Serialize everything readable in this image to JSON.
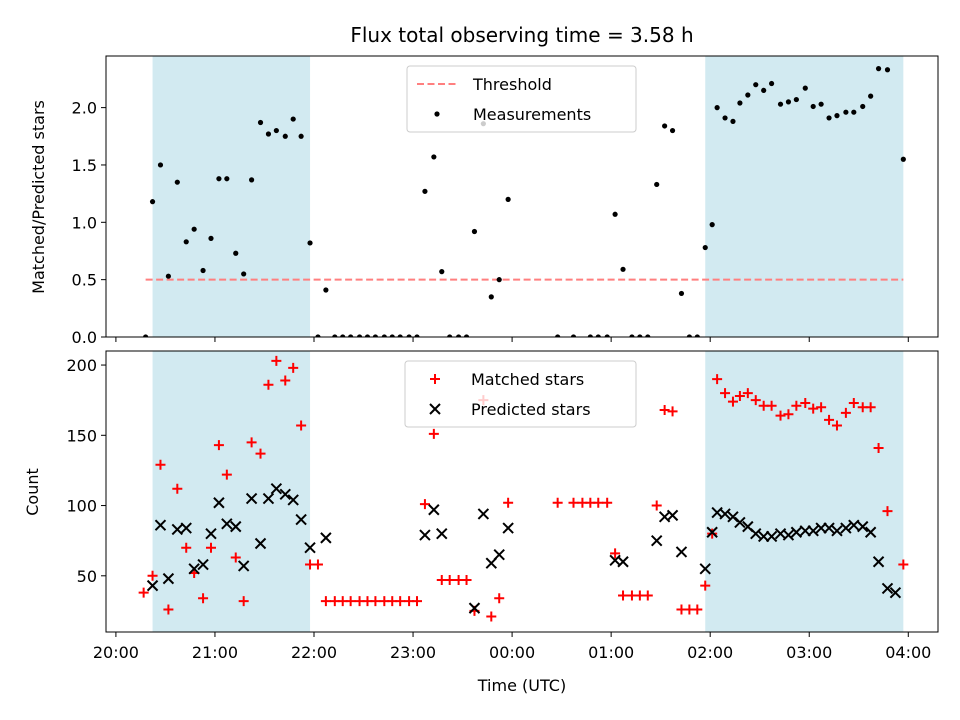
{
  "chart_data": {
    "title": "Flux total observing time = 3.58 h",
    "x_labels": [
      "20:00",
      "21:00",
      "22:00",
      "23:00",
      "00:00",
      "01:00",
      "02:00",
      "03:00",
      "04:00"
    ],
    "x_axis_unit": "hours since 20:00 UTC",
    "xlabel": "Time (UTC)",
    "xlim": [
      -0.1,
      8.3
    ],
    "shaded_intervals": [
      [
        0.37,
        1.96
      ],
      [
        5.95,
        7.95
      ]
    ],
    "shade_color": "#add8e6",
    "panels": [
      {
        "type": "scatter",
        "ylabel": "Matched/Predicted stars",
        "ylim": [
          0,
          2.45
        ],
        "yticks": [
          "0.0",
          "0.5",
          "1.0",
          "1.5",
          "2.0"
        ],
        "legend_position": "upper center",
        "threshold": {
          "name": "Threshold",
          "value": 0.5,
          "x": [
            0.3,
            7.95
          ],
          "color": "#ff7f7f"
        },
        "series": [
          {
            "name": "Measurements",
            "marker": "dot",
            "color": "#000000",
            "points": [
              [
                0.3,
                0.0
              ],
              [
                0.37,
                1.18
              ],
              [
                0.45,
                1.5
              ],
              [
                0.53,
                0.53
              ],
              [
                0.62,
                1.35
              ],
              [
                0.71,
                0.83
              ],
              [
                0.79,
                0.94
              ],
              [
                0.88,
                0.58
              ],
              [
                0.96,
                0.86
              ],
              [
                1.04,
                1.38
              ],
              [
                1.12,
                1.38
              ],
              [
                1.21,
                0.73
              ],
              [
                1.29,
                0.55
              ],
              [
                1.37,
                1.37
              ],
              [
                1.46,
                1.87
              ],
              [
                1.54,
                1.77
              ],
              [
                1.62,
                1.8
              ],
              [
                1.71,
                1.75
              ],
              [
                1.79,
                1.9
              ],
              [
                1.87,
                1.75
              ],
              [
                1.96,
                0.82
              ],
              [
                2.04,
                0.0
              ],
              [
                2.12,
                0.41
              ],
              [
                2.21,
                0.0
              ],
              [
                2.29,
                0.0
              ],
              [
                2.37,
                0.0
              ],
              [
                2.46,
                0.0
              ],
              [
                2.54,
                0.0
              ],
              [
                2.62,
                0.0
              ],
              [
                2.71,
                0.0
              ],
              [
                2.79,
                0.0
              ],
              [
                2.87,
                0.0
              ],
              [
                2.96,
                0.0
              ],
              [
                3.04,
                0.0
              ],
              [
                3.12,
                1.27
              ],
              [
                3.21,
                1.57
              ],
              [
                3.29,
                0.57
              ],
              [
                3.37,
                0.0
              ],
              [
                3.46,
                0.0
              ],
              [
                3.54,
                0.0
              ],
              [
                3.62,
                0.92
              ],
              [
                3.71,
                1.86
              ],
              [
                3.79,
                0.35
              ],
              [
                3.87,
                0.5
              ],
              [
                3.96,
                1.2
              ],
              [
                4.46,
                0.0
              ],
              [
                4.62,
                0.0
              ],
              [
                4.79,
                0.0
              ],
              [
                4.87,
                0.0
              ],
              [
                4.96,
                0.0
              ],
              [
                5.04,
                1.07
              ],
              [
                5.12,
                0.59
              ],
              [
                5.21,
                0.0
              ],
              [
                5.29,
                0.0
              ],
              [
                5.37,
                0.0
              ],
              [
                5.46,
                1.33
              ],
              [
                5.54,
                1.84
              ],
              [
                5.62,
                1.8
              ],
              [
                5.71,
                0.38
              ],
              [
                5.79,
                0.0
              ],
              [
                5.87,
                0.0
              ],
              [
                5.95,
                0.78
              ],
              [
                6.02,
                0.98
              ],
              [
                6.07,
                2.0
              ],
              [
                6.15,
                1.91
              ],
              [
                6.23,
                1.88
              ],
              [
                6.3,
                2.04
              ],
              [
                6.38,
                2.11
              ],
              [
                6.46,
                2.2
              ],
              [
                6.54,
                2.15
              ],
              [
                6.62,
                2.21
              ],
              [
                6.71,
                2.03
              ],
              [
                6.79,
                2.05
              ],
              [
                6.87,
                2.07
              ],
              [
                6.96,
                2.17
              ],
              [
                7.04,
                2.01
              ],
              [
                7.12,
                2.03
              ],
              [
                7.2,
                1.91
              ],
              [
                7.28,
                1.93
              ],
              [
                7.37,
                1.96
              ],
              [
                7.45,
                1.96
              ],
              [
                7.54,
                2.01
              ],
              [
                7.62,
                2.1
              ],
              [
                7.7,
                2.34
              ],
              [
                7.79,
                2.33
              ],
              [
                7.95,
                1.55
              ]
            ]
          }
        ]
      },
      {
        "type": "scatter",
        "ylabel": "Count",
        "ylim": [
          10,
          210
        ],
        "yticks": [
          "50",
          "100",
          "150",
          "200"
        ],
        "legend_position": "upper center",
        "series": [
          {
            "name": "Matched stars",
            "marker": "plus",
            "color": "#ff0000",
            "points": [
              [
                0.28,
                38
              ],
              [
                0.37,
                50
              ],
              [
                0.45,
                129
              ],
              [
                0.53,
                26
              ],
              [
                0.62,
                112
              ],
              [
                0.71,
                70
              ],
              [
                0.79,
                52
              ],
              [
                0.88,
                34
              ],
              [
                0.96,
                70
              ],
              [
                1.04,
                143
              ],
              [
                1.12,
                122
              ],
              [
                1.21,
                63
              ],
              [
                1.29,
                32
              ],
              [
                1.37,
                145
              ],
              [
                1.46,
                137
              ],
              [
                1.54,
                186
              ],
              [
                1.62,
                203
              ],
              [
                1.71,
                189
              ],
              [
                1.79,
                198
              ],
              [
                1.87,
                157
              ],
              [
                1.96,
                58
              ],
              [
                2.04,
                58
              ],
              [
                2.12,
                32
              ],
              [
                2.21,
                32
              ],
              [
                2.29,
                32
              ],
              [
                2.37,
                32
              ],
              [
                2.46,
                32
              ],
              [
                2.54,
                32
              ],
              [
                2.62,
                32
              ],
              [
                2.71,
                32
              ],
              [
                2.79,
                32
              ],
              [
                2.87,
                32
              ],
              [
                2.96,
                32
              ],
              [
                3.04,
                32
              ],
              [
                3.12,
                101
              ],
              [
                3.21,
                151
              ],
              [
                3.29,
                47
              ],
              [
                3.37,
                47
              ],
              [
                3.46,
                47
              ],
              [
                3.54,
                47
              ],
              [
                3.62,
                25
              ],
              [
                3.71,
                175
              ],
              [
                3.79,
                21
              ],
              [
                3.87,
                34
              ],
              [
                3.96,
                102
              ],
              [
                4.46,
                102
              ],
              [
                4.62,
                102
              ],
              [
                4.71,
                102
              ],
              [
                4.79,
                102
              ],
              [
                4.87,
                102
              ],
              [
                4.96,
                102
              ],
              [
                5.04,
                66
              ],
              [
                5.12,
                36
              ],
              [
                5.21,
                36
              ],
              [
                5.29,
                36
              ],
              [
                5.37,
                36
              ],
              [
                5.46,
                100
              ],
              [
                5.54,
                168
              ],
              [
                5.62,
                167
              ],
              [
                5.71,
                26
              ],
              [
                5.79,
                26
              ],
              [
                5.87,
                26
              ],
              [
                5.95,
                43
              ],
              [
                6.02,
                80
              ],
              [
                6.07,
                190
              ],
              [
                6.15,
                180
              ],
              [
                6.23,
                174
              ],
              [
                6.3,
                178
              ],
              [
                6.38,
                180
              ],
              [
                6.46,
                175
              ],
              [
                6.54,
                171
              ],
              [
                6.62,
                171
              ],
              [
                6.71,
                164
              ],
              [
                6.79,
                165
              ],
              [
                6.87,
                171
              ],
              [
                6.96,
                173
              ],
              [
                7.04,
                169
              ],
              [
                7.12,
                170
              ],
              [
                7.2,
                161
              ],
              [
                7.28,
                157
              ],
              [
                7.37,
                166
              ],
              [
                7.45,
                173
              ],
              [
                7.54,
                170
              ],
              [
                7.62,
                170
              ],
              [
                7.7,
                141
              ],
              [
                7.79,
                96
              ],
              [
                7.95,
                58
              ]
            ]
          },
          {
            "name": "Predicted stars",
            "marker": "x",
            "color": "#000000",
            "points": [
              [
                0.37,
                43
              ],
              [
                0.45,
                86
              ],
              [
                0.53,
                48
              ],
              [
                0.62,
                83
              ],
              [
                0.71,
                84
              ],
              [
                0.79,
                55
              ],
              [
                0.88,
                58
              ],
              [
                0.96,
                80
              ],
              [
                1.04,
                102
              ],
              [
                1.12,
                87
              ],
              [
                1.21,
                85
              ],
              [
                1.29,
                57
              ],
              [
                1.37,
                105
              ],
              [
                1.46,
                73
              ],
              [
                1.54,
                105
              ],
              [
                1.62,
                112
              ],
              [
                1.71,
                108
              ],
              [
                1.79,
                104
              ],
              [
                1.87,
                90
              ],
              [
                1.96,
                70
              ],
              [
                2.12,
                77
              ],
              [
                3.12,
                79
              ],
              [
                3.21,
                97
              ],
              [
                3.29,
                80
              ],
              [
                3.62,
                27
              ],
              [
                3.71,
                94
              ],
              [
                3.79,
                59
              ],
              [
                3.87,
                65
              ],
              [
                3.96,
                84
              ],
              [
                5.04,
                61
              ],
              [
                5.12,
                60
              ],
              [
                5.46,
                75
              ],
              [
                5.54,
                92
              ],
              [
                5.62,
                93
              ],
              [
                5.71,
                67
              ],
              [
                5.95,
                55
              ],
              [
                6.02,
                81
              ],
              [
                6.07,
                95
              ],
              [
                6.15,
                94
              ],
              [
                6.23,
                92
              ],
              [
                6.3,
                88
              ],
              [
                6.38,
                85
              ],
              [
                6.46,
                80
              ],
              [
                6.54,
                78
              ],
              [
                6.62,
                78
              ],
              [
                6.71,
                80
              ],
              [
                6.79,
                79
              ],
              [
                6.87,
                81
              ],
              [
                6.96,
                82
              ],
              [
                7.04,
                82
              ],
              [
                7.12,
                84
              ],
              [
                7.2,
                84
              ],
              [
                7.28,
                82
              ],
              [
                7.37,
                84
              ],
              [
                7.45,
                86
              ],
              [
                7.54,
                85
              ],
              [
                7.62,
                81
              ],
              [
                7.7,
                60
              ],
              [
                7.79,
                41
              ],
              [
                7.87,
                38
              ]
            ]
          }
        ]
      }
    ]
  }
}
